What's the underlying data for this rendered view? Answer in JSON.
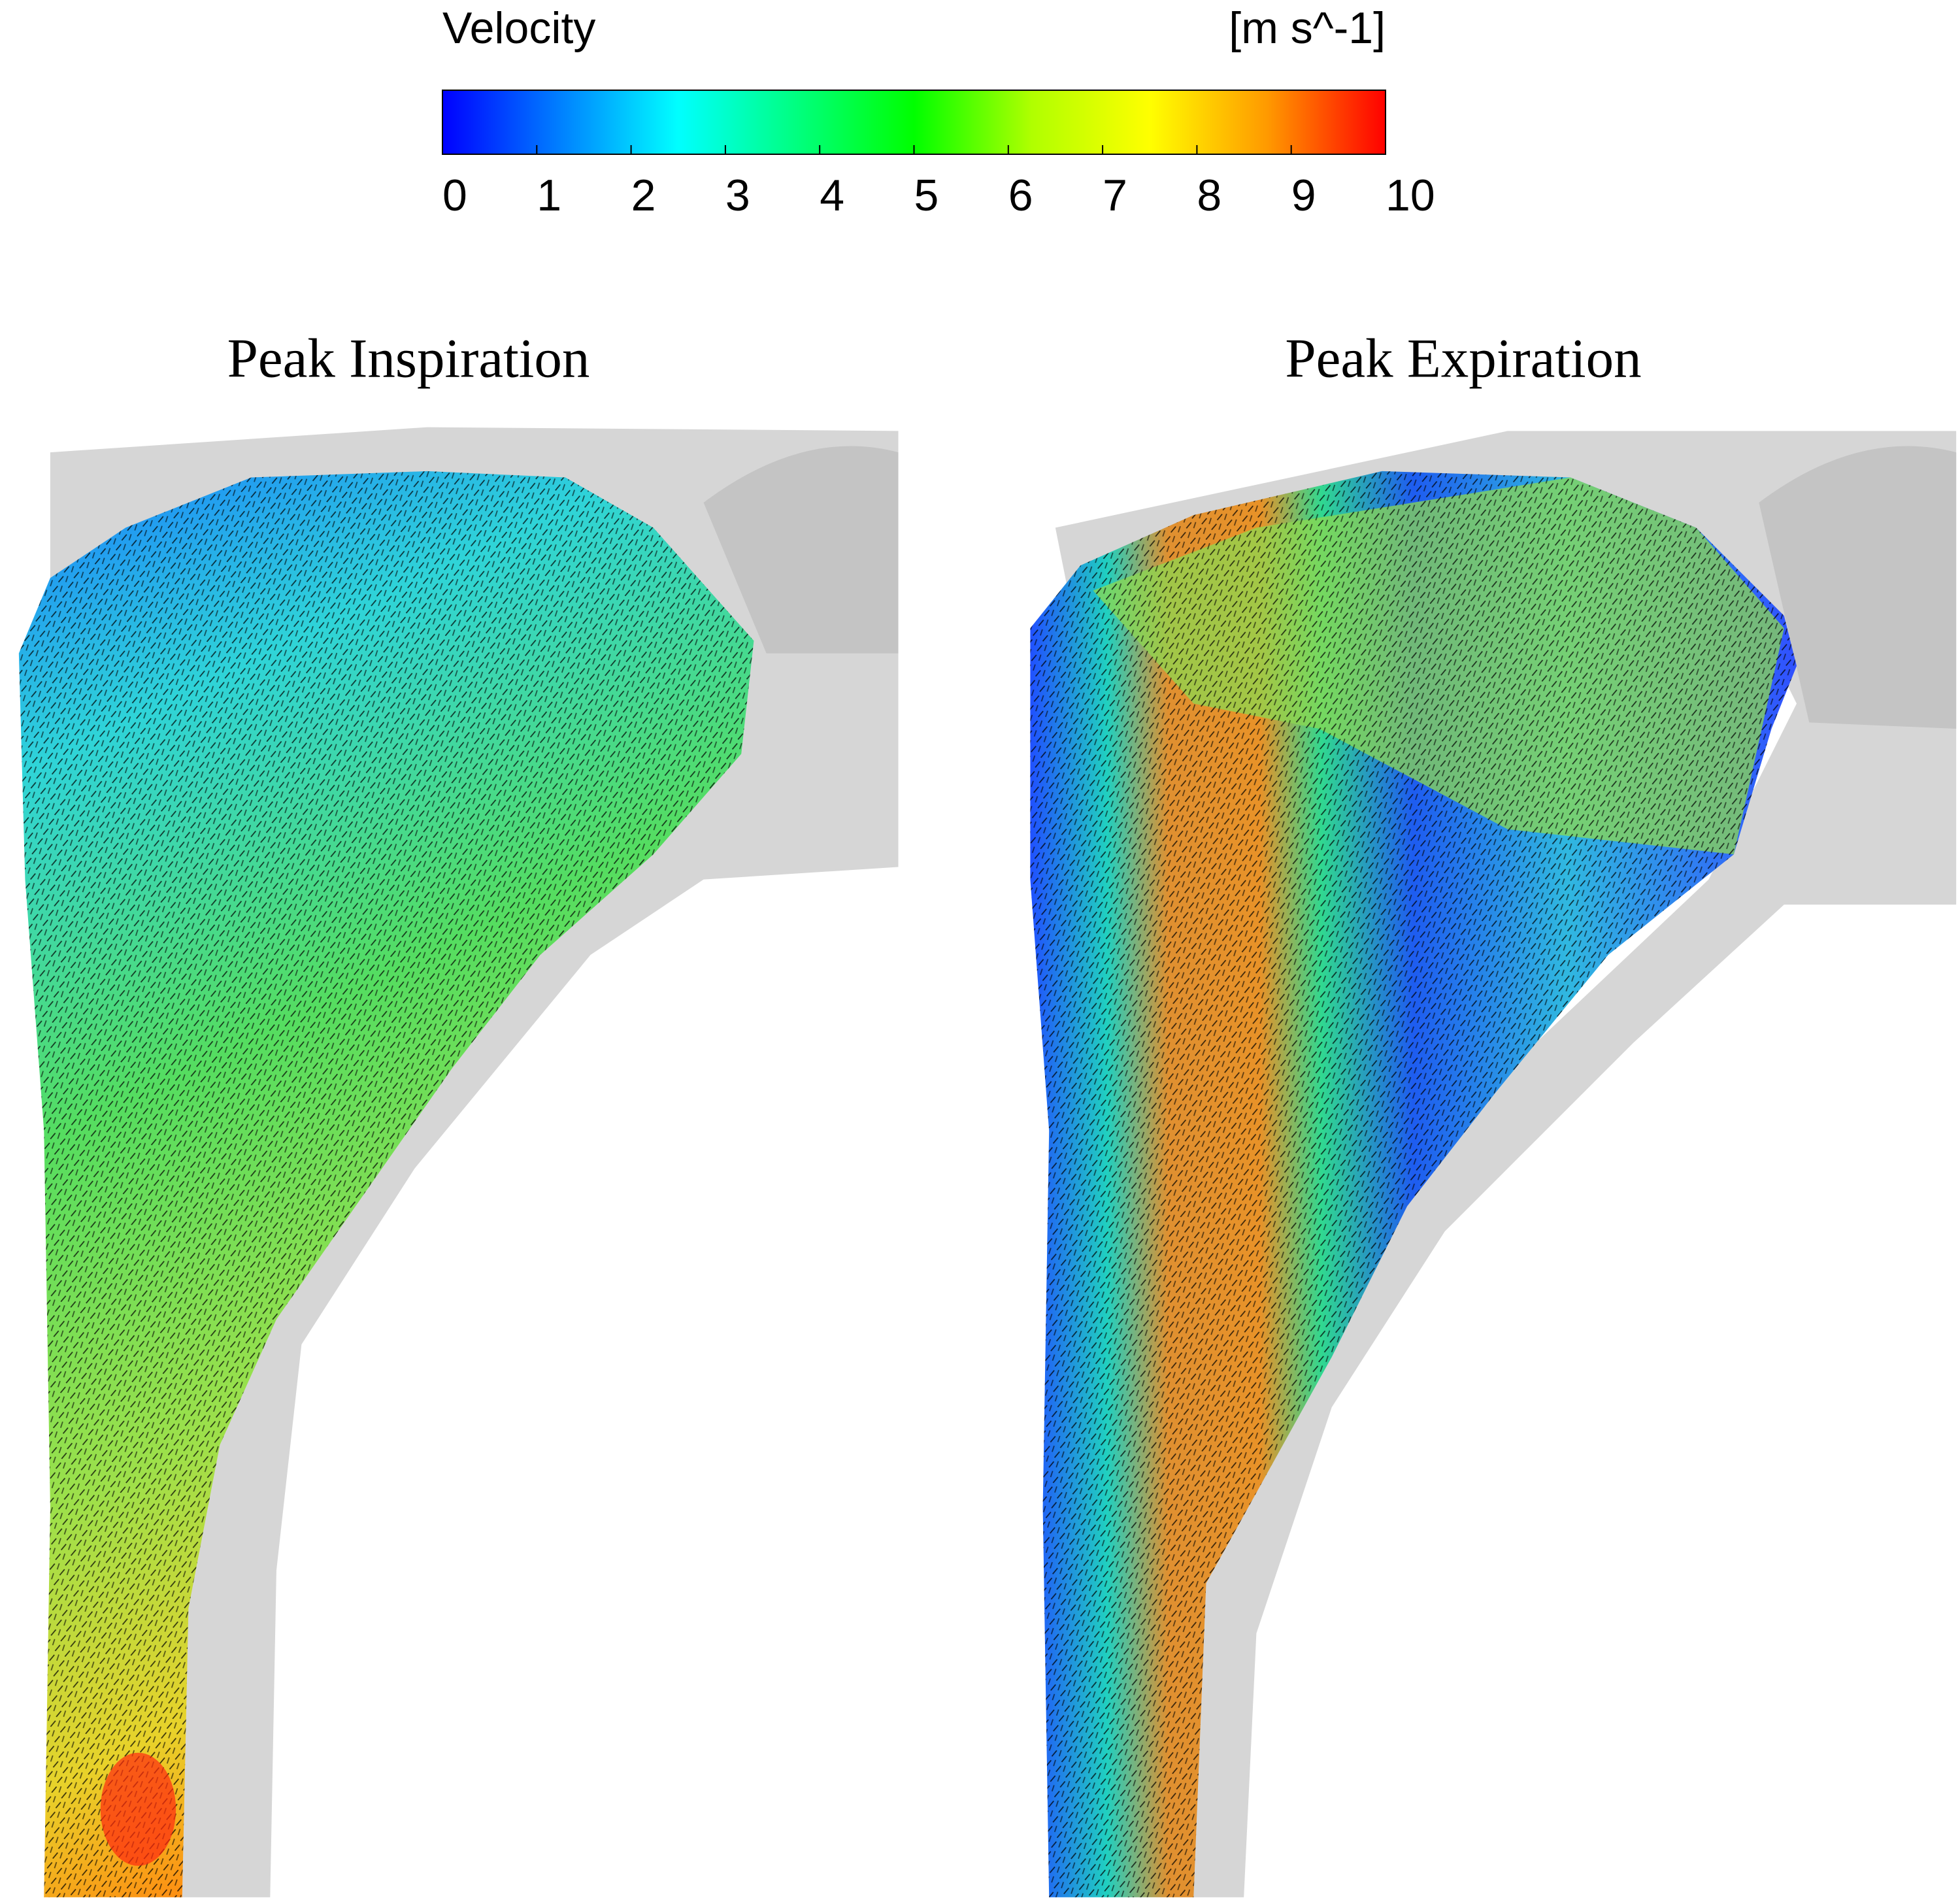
{
  "colorbar": {
    "title": "Velocity",
    "unit": "[m s^-1]",
    "range": [
      0,
      10
    ],
    "ticks": [
      0,
      1,
      2,
      3,
      4,
      5,
      6,
      7,
      8,
      9,
      10
    ],
    "colormap": [
      "#0000ff",
      "#0080ff",
      "#00ffff",
      "#00ff80",
      "#00ff00",
      "#b0ff00",
      "#ffff00",
      "#ff9900",
      "#ff0000"
    ]
  },
  "panels": [
    {
      "title": "Peak Inspiration"
    },
    {
      "title": "Peak Expiration"
    }
  ]
}
